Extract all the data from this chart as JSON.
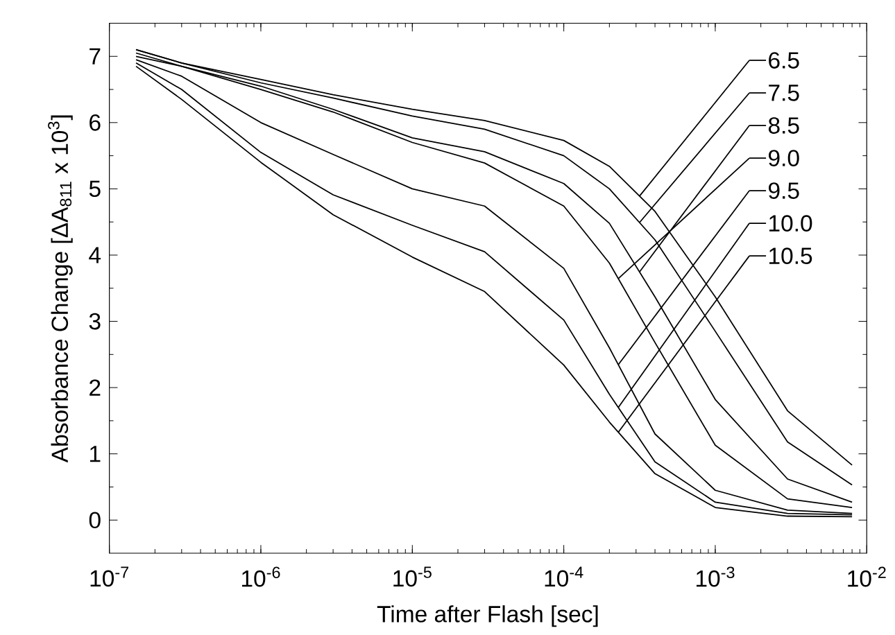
{
  "chart_data": {
    "type": "line",
    "xlabel": "Time after Flash [sec]",
    "ylabel": "Absorbance Change [ΔA$_{811}$ x 10$^{3}$]",
    "log": "x",
    "legend": "top right",
    "xlim": [
      1e-07,
      0.01
    ],
    "xticks": [
      {
        "value": 1e-07,
        "label": "10$^{-7}$"
      },
      {
        "value": 1e-06,
        "label": "10$^{-6}$"
      },
      {
        "value": 1e-05,
        "label": "10$^{-5}$"
      },
      {
        "value": 0.0001,
        "label": "10$^{-4}$"
      },
      {
        "value": 0.001,
        "label": "10$^{-3}$"
      },
      {
        "value": 0.01,
        "label": "10$^{-2}$"
      }
    ],
    "ylim": [
      -0.5,
      7.5
    ],
    "yticks": [
      0,
      1,
      2,
      3,
      4,
      5,
      6,
      7
    ],
    "x": [
      1.5e-07,
      3e-07,
      1e-06,
      3e-06,
      1e-05,
      3e-05,
      0.0001,
      0.0002,
      0.0004,
      0.001,
      0.003,
      0.008
    ],
    "series": [
      {
        "name": "6.5",
        "color": "#000000",
        "values": [
          7.1,
          6.9,
          6.65,
          6.42,
          6.2,
          6.03,
          5.73,
          5.34,
          4.66,
          3.37,
          1.65,
          0.83
        ]
      },
      {
        "name": "7.5",
        "color": "#000000",
        "values": [
          7.1,
          6.9,
          6.6,
          6.37,
          6.1,
          5.9,
          5.5,
          5.0,
          4.23,
          2.85,
          1.18,
          0.53
        ]
      },
      {
        "name": "8.5",
        "color": "#000000",
        "values": [
          7.05,
          6.85,
          6.55,
          6.2,
          5.77,
          5.56,
          5.08,
          4.48,
          3.37,
          1.82,
          0.62,
          0.27
        ]
      },
      {
        "name": "9.0",
        "color": "#000000",
        "values": [
          7.0,
          6.85,
          6.5,
          6.16,
          5.7,
          5.39,
          4.74,
          3.88,
          2.68,
          1.13,
          0.32,
          0.19
        ]
      },
      {
        "name": "9.5",
        "color": "#000000",
        "values": [
          6.95,
          6.7,
          6.0,
          5.52,
          5.0,
          4.74,
          3.8,
          2.6,
          1.3,
          0.45,
          0.15,
          0.1
        ]
      },
      {
        "name": "10.0",
        "color": "#000000",
        "values": [
          6.9,
          6.5,
          5.55,
          4.91,
          4.45,
          4.05,
          3.02,
          1.9,
          0.88,
          0.27,
          0.1,
          0.08
        ]
      },
      {
        "name": "10.5",
        "color": "#000000",
        "values": [
          6.85,
          6.35,
          5.4,
          4.61,
          3.97,
          3.45,
          2.34,
          1.48,
          0.7,
          0.19,
          0.06,
          0.05
        ]
      }
    ]
  }
}
